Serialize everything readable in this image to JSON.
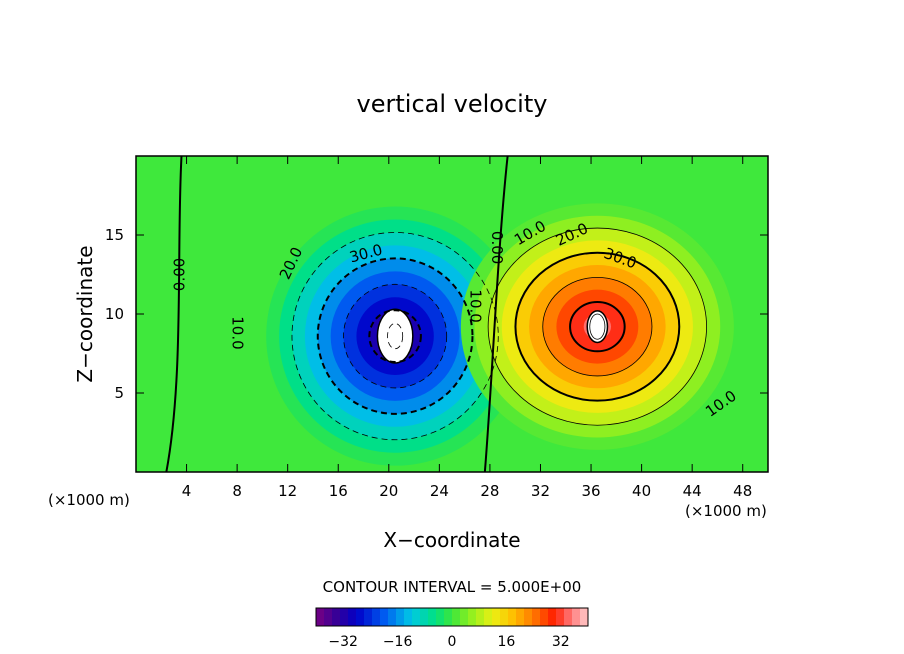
{
  "chart_data": {
    "type": "heatmap",
    "title": "vertical velocity",
    "xlabel": "X−coordinate",
    "ylabel": "Z−coordinate",
    "x_unit_left": "(×1000 m)",
    "x_unit_right": "(×1000 m)",
    "xlim": [
      0,
      50
    ],
    "ylim": [
      0,
      20
    ],
    "x_ticks": [
      "4",
      "8",
      "12",
      "16",
      "20",
      "24",
      "28",
      "32",
      "36",
      "40",
      "44",
      "48"
    ],
    "y_ticks": [
      "5",
      "10",
      "15"
    ],
    "contour_interval_text": "CONTOUR INTERVAL = 5.000E+00",
    "contour_interval": 5,
    "value_range": [
      -40,
      40
    ],
    "colorbar_ticks": [
      "−32",
      "−16",
      "0",
      "16",
      "32"
    ],
    "colorbar_tick_values": [
      -32,
      -16,
      0,
      16,
      32
    ],
    "downdraft": {
      "center": [
        20.5,
        8.6
      ],
      "peak": -40
    },
    "updraft": {
      "center": [
        36.5,
        9.2
      ],
      "peak": 40
    },
    "contour_labels": [
      {
        "text": "0.00",
        "x": 3.5,
        "z": 12.5,
        "rotate": -90
      },
      {
        "text": "10.0",
        "x": 8,
        "z": 8.8,
        "rotate": 90
      },
      {
        "text": "20.0",
        "x": 12.3,
        "z": 13.2,
        "rotate": -65
      },
      {
        "text": "30.0",
        "x": 18.2,
        "z": 13.8,
        "rotate": -15
      },
      {
        "text": "10.0",
        "x": 26.8,
        "z": 10.5,
        "rotate": 90
      },
      {
        "text": "0.00",
        "x": 28.5,
        "z": 14.2,
        "rotate": 90
      },
      {
        "text": "10.0",
        "x": 31.2,
        "z": 15.1,
        "rotate": -30
      },
      {
        "text": "20.0",
        "x": 34.5,
        "z": 15.0,
        "rotate": -25
      },
      {
        "text": "30.0",
        "x": 38.3,
        "z": 13.5,
        "rotate": 20
      },
      {
        "text": "10.0",
        "x": 46.3,
        "z": 4.3,
        "rotate": -35
      }
    ]
  }
}
